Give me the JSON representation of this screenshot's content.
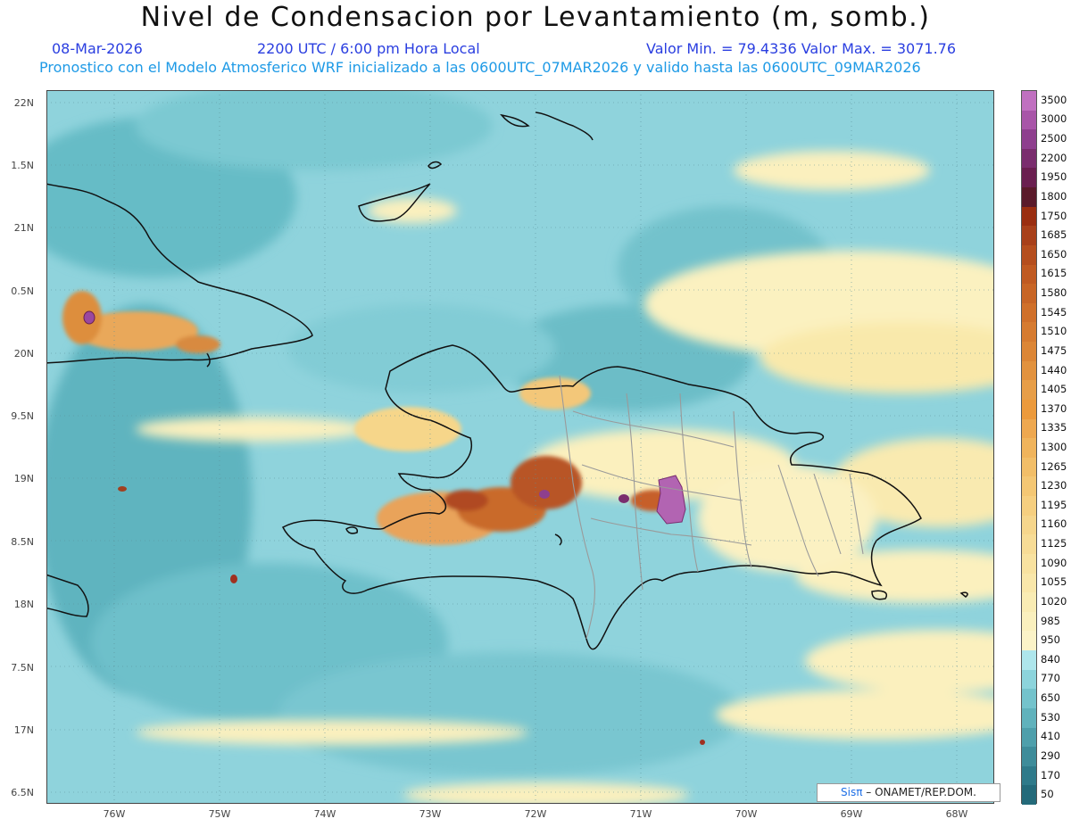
{
  "header": {
    "title": "Nivel de Condensacion por Levantamiento (m, somb.)",
    "date": "08-Mar-2026",
    "time": "2200 UTC / 6:00 pm Hora Local",
    "minmax": "Valor Min. = 79.4336   Valor Max. = 3071.76",
    "model_line": "Pronostico con el Modelo Atmosferico WRF inicializado a las 0600UTC_07MAR2026 y valido hasta las  0600UTC_09MAR2026"
  },
  "axes": {
    "lat_labels": [
      "22N",
      "1.5N",
      "21N",
      "0.5N",
      "20N",
      "9.5N",
      "19N",
      "8.5N",
      "18N",
      "7.5N",
      "17N",
      "6.5N"
    ],
    "lon_labels": [
      "76W",
      "75W",
      "74W",
      "73W",
      "72W",
      "71W",
      "70W",
      "69W",
      "68W"
    ]
  },
  "colorbar": {
    "levels": [
      "3500",
      "3000",
      "2500",
      "2200",
      "1950",
      "1800",
      "1750",
      "1685",
      "1650",
      "1615",
      "1580",
      "1545",
      "1510",
      "1475",
      "1440",
      "1405",
      "1370",
      "1335",
      "1300",
      "1265",
      "1230",
      "1195",
      "1160",
      "1125",
      "1090",
      "1055",
      "1020",
      "985",
      "950",
      "840",
      "770",
      "650",
      "530",
      "410",
      "290",
      "170",
      "50"
    ],
    "colors": [
      "#c070c0",
      "#a855a8",
      "#8e3f8e",
      "#7a2d6e",
      "#6a1f50",
      "#5a1a2a",
      "#9a2e10",
      "#a8401a",
      "#b54e1e",
      "#c05a22",
      "#c86526",
      "#d0702a",
      "#d67b30",
      "#dc8636",
      "#e2923e",
      "#e79e48",
      "#ec9a3c",
      "#eea850",
      "#f0b45c",
      "#f2be68",
      "#f4c774",
      "#f6cf80",
      "#f6d68c",
      "#f7dc96",
      "#f8e2a0",
      "#f9e7aa",
      "#f9ecb4",
      "#faf0be",
      "#fbf3c8",
      "#aee6ec",
      "#8cd4dc",
      "#74c3cc",
      "#60b2bc",
      "#4e9fab",
      "#3e8c9a",
      "#2f7a8a",
      "#246a7a"
    ]
  },
  "credit": {
    "brand": "Sisπ",
    "text": " – ONAMET/REP.DOM."
  }
}
